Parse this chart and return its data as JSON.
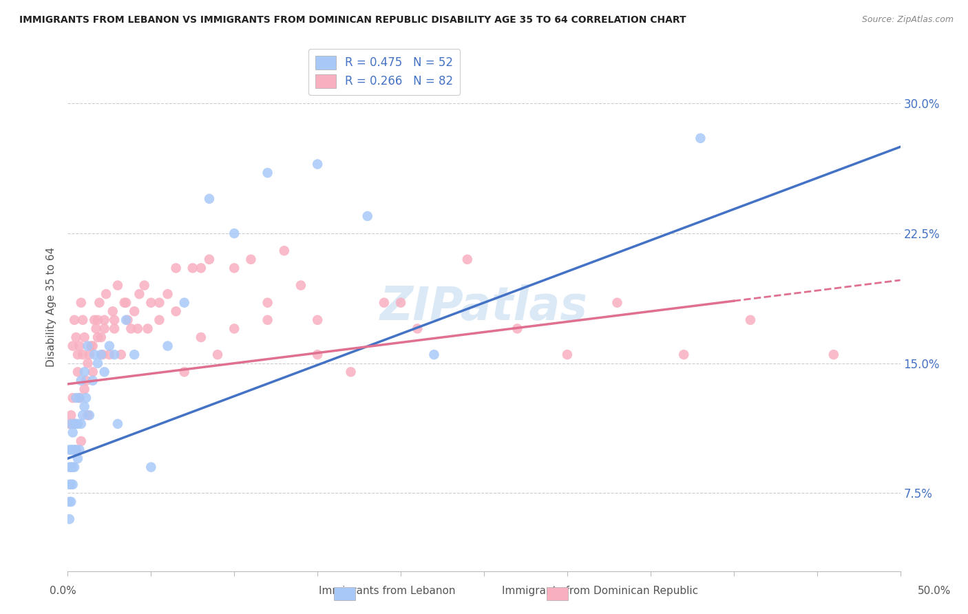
{
  "title": "IMMIGRANTS FROM LEBANON VS IMMIGRANTS FROM DOMINICAN REPUBLIC DISABILITY AGE 35 TO 64 CORRELATION CHART",
  "source": "Source: ZipAtlas.com",
  "ylabel": "Disability Age 35 to 64",
  "ytick_labels": [
    "7.5%",
    "15.0%",
    "22.5%",
    "30.0%"
  ],
  "ytick_values": [
    0.075,
    0.15,
    0.225,
    0.3
  ],
  "xlim": [
    0.0,
    0.5
  ],
  "ylim": [
    0.03,
    0.335
  ],
  "legend1_label": "R = 0.475   N = 52",
  "legend2_label": "R = 0.266   N = 82",
  "series1_color": "#a8c8f8",
  "series2_color": "#f8b0c0",
  "line1_color": "#4472c4",
  "line2_color": "#e07090",
  "watermark": "ZIPatlas",
  "line1_x0": 0.0,
  "line1_y0": 0.095,
  "line1_x1": 0.5,
  "line1_y1": 0.275,
  "line2_x0": 0.0,
  "line2_y0": 0.138,
  "line2_x1": 0.5,
  "line2_y1": 0.198,
  "line2_solid_end": 0.4,
  "lebanon_x": [
    0.001,
    0.001,
    0.001,
    0.001,
    0.001,
    0.002,
    0.002,
    0.002,
    0.002,
    0.002,
    0.003,
    0.003,
    0.003,
    0.003,
    0.004,
    0.004,
    0.004,
    0.005,
    0.005,
    0.005,
    0.006,
    0.006,
    0.007,
    0.007,
    0.008,
    0.008,
    0.009,
    0.01,
    0.01,
    0.011,
    0.012,
    0.013,
    0.015,
    0.016,
    0.018,
    0.02,
    0.022,
    0.025,
    0.028,
    0.03,
    0.035,
    0.04,
    0.05,
    0.06,
    0.07,
    0.085,
    0.1,
    0.12,
    0.15,
    0.18,
    0.22,
    0.38
  ],
  "lebanon_y": [
    0.06,
    0.07,
    0.08,
    0.09,
    0.1,
    0.07,
    0.08,
    0.09,
    0.1,
    0.115,
    0.08,
    0.09,
    0.1,
    0.11,
    0.09,
    0.1,
    0.115,
    0.1,
    0.115,
    0.13,
    0.095,
    0.115,
    0.1,
    0.13,
    0.115,
    0.14,
    0.12,
    0.125,
    0.145,
    0.13,
    0.16,
    0.12,
    0.14,
    0.155,
    0.15,
    0.155,
    0.145,
    0.16,
    0.155,
    0.115,
    0.175,
    0.155,
    0.09,
    0.16,
    0.185,
    0.245,
    0.225,
    0.26,
    0.265,
    0.235,
    0.155,
    0.28
  ],
  "dominican_x": [
    0.001,
    0.002,
    0.003,
    0.004,
    0.005,
    0.006,
    0.007,
    0.008,
    0.009,
    0.01,
    0.011,
    0.012,
    0.013,
    0.014,
    0.015,
    0.016,
    0.017,
    0.018,
    0.019,
    0.02,
    0.021,
    0.022,
    0.023,
    0.025,
    0.027,
    0.028,
    0.03,
    0.032,
    0.034,
    0.036,
    0.038,
    0.04,
    0.043,
    0.046,
    0.05,
    0.055,
    0.06,
    0.065,
    0.07,
    0.075,
    0.08,
    0.085,
    0.09,
    0.1,
    0.11,
    0.12,
    0.13,
    0.14,
    0.15,
    0.17,
    0.19,
    0.21,
    0.24,
    0.27,
    0.3,
    0.33,
    0.37,
    0.41,
    0.46,
    0.003,
    0.004,
    0.005,
    0.006,
    0.007,
    0.008,
    0.009,
    0.01,
    0.012,
    0.015,
    0.018,
    0.022,
    0.028,
    0.035,
    0.042,
    0.048,
    0.055,
    0.065,
    0.08,
    0.1,
    0.12,
    0.15,
    0.2
  ],
  "dominican_y": [
    0.115,
    0.12,
    0.13,
    0.115,
    0.1,
    0.145,
    0.13,
    0.105,
    0.155,
    0.135,
    0.14,
    0.12,
    0.155,
    0.16,
    0.145,
    0.175,
    0.17,
    0.165,
    0.185,
    0.165,
    0.155,
    0.175,
    0.19,
    0.155,
    0.18,
    0.17,
    0.195,
    0.155,
    0.185,
    0.175,
    0.17,
    0.18,
    0.19,
    0.195,
    0.185,
    0.175,
    0.19,
    0.205,
    0.145,
    0.205,
    0.205,
    0.21,
    0.155,
    0.205,
    0.21,
    0.185,
    0.215,
    0.195,
    0.155,
    0.145,
    0.185,
    0.17,
    0.21,
    0.17,
    0.155,
    0.185,
    0.155,
    0.175,
    0.155,
    0.16,
    0.175,
    0.165,
    0.155,
    0.16,
    0.185,
    0.175,
    0.165,
    0.15,
    0.16,
    0.175,
    0.17,
    0.175,
    0.185,
    0.17,
    0.17,
    0.185,
    0.18,
    0.165,
    0.17,
    0.175,
    0.175,
    0.185
  ]
}
